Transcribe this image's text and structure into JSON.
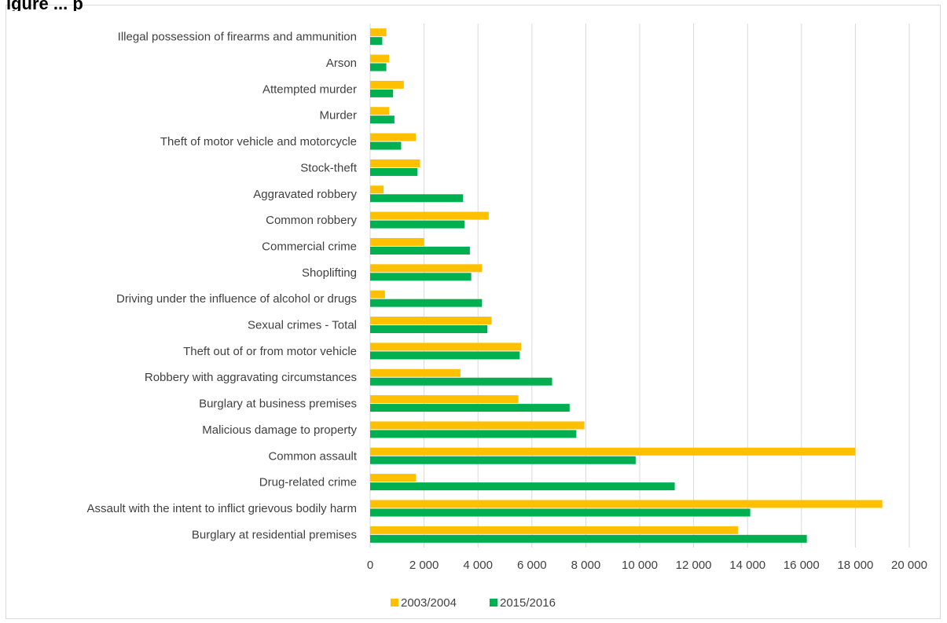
{
  "chart_data": {
    "type": "bar",
    "orientation": "horizontal",
    "title": "igure ... p",
    "categories": [
      "Burglary at residential premises",
      "Assault with the intent to inflict grievous bodily harm",
      "Drug-related crime",
      "Common assault",
      "Malicious damage to property",
      "Burglary at business premises",
      "Robbery with aggravating circumstances",
      "Theft out of or from motor vehicle",
      "Sexual crimes - Total",
      "Driving under the influence of alcohol or drugs",
      "Shoplifting",
      "Commercial crime",
      "Common robbery",
      "Aggravated robbery",
      "Stock-theft",
      "Theft of motor vehicle and motorcycle",
      "Murder",
      "Attempted murder",
      "Arson",
      "Illegal possession of firearms and ammunition"
    ],
    "series": [
      {
        "name": "2003/2004",
        "color": "#FFC000",
        "values": [
          13650,
          19000,
          1700,
          18000,
          7950,
          5500,
          3350,
          5600,
          4500,
          550,
          4150,
          2000,
          4400,
          500,
          1850,
          1700,
          700,
          1250,
          700,
          600
        ]
      },
      {
        "name": "2015/2016",
        "color": "#00B050",
        "values": [
          16200,
          14100,
          11300,
          9850,
          7650,
          7400,
          6750,
          5550,
          4350,
          4150,
          3750,
          3700,
          3500,
          3450,
          1750,
          1150,
          900,
          850,
          600,
          450
        ]
      }
    ],
    "xlim": [
      0,
      20000
    ],
    "xticks": [
      "0",
      "2 000",
      "4 000",
      "6 000",
      "8 000",
      "10 000",
      "12 000",
      "14 000",
      "16 000",
      "18 000",
      "20 000"
    ],
    "xtick_values": [
      0,
      2000,
      4000,
      6000,
      8000,
      10000,
      12000,
      14000,
      16000,
      18000,
      20000
    ],
    "grid": "vertical",
    "legend": "bottom"
  }
}
